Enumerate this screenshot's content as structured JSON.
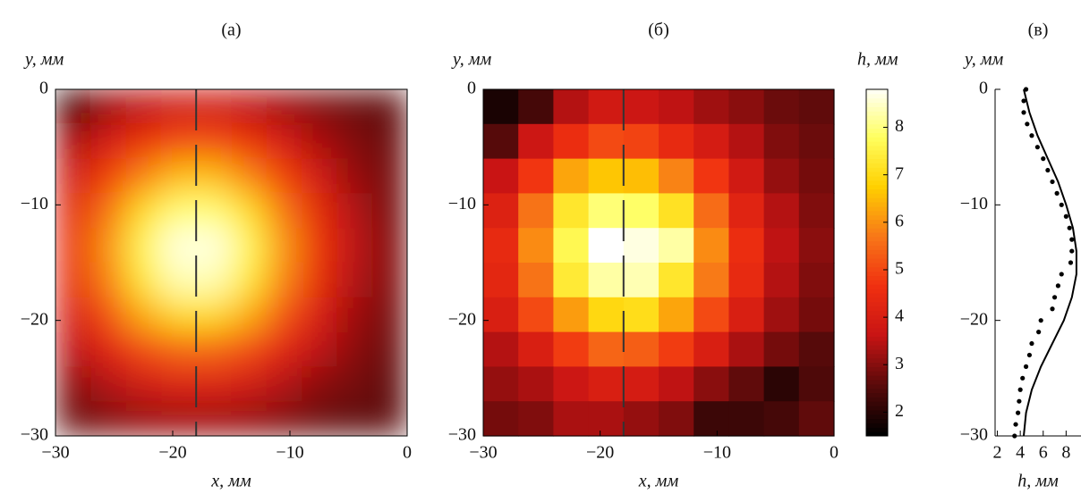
{
  "chart_data": [
    {
      "type": "heatmap",
      "title": "(a)",
      "xlabel": "x, мм",
      "ylabel": "y, мм",
      "smooth": true,
      "xlim": [
        -30,
        0
      ],
      "ylim": [
        -30,
        0
      ],
      "xticks": [
        {
          "value": -30,
          "label": "−30"
        },
        {
          "value": -20,
          "label": "−20"
        },
        {
          "value": -10,
          "label": "−10"
        },
        0
      ],
      "yticks": [
        0,
        {
          "value": -10,
          "label": "−10"
        },
        {
          "value": -20,
          "label": "−20"
        },
        {
          "value": -30,
          "label": "−30"
        }
      ],
      "clim": [
        1.5,
        8.8
      ],
      "colormap": [
        "#000000",
        "#5a0a0a",
        "#c81414",
        "#f03010",
        "#f87818",
        "#ffd000",
        "#ffff60",
        "#ffffff"
      ],
      "section_x": -18,
      "section_color": "#333333",
      "z": [
        [
          2.0,
          3.2,
          3.5,
          3.8,
          3.8,
          3.5,
          3.2,
          2.9,
          2.7,
          2.6
        ],
        [
          3.3,
          3.9,
          4.5,
          5.0,
          5.0,
          4.5,
          3.9,
          3.3,
          2.9,
          2.7
        ],
        [
          3.8,
          4.8,
          5.8,
          6.5,
          6.5,
          5.8,
          4.8,
          3.8,
          3.1,
          2.8
        ],
        [
          4.3,
          5.6,
          7.0,
          7.9,
          7.9,
          7.0,
          5.6,
          4.3,
          3.4,
          2.8
        ],
        [
          4.5,
          6.0,
          7.6,
          8.6,
          8.6,
          7.6,
          6.0,
          4.5,
          3.5,
          2.9
        ],
        [
          4.4,
          5.8,
          7.3,
          8.3,
          8.3,
          7.3,
          5.8,
          4.4,
          3.4,
          2.9
        ],
        [
          4.0,
          5.1,
          6.3,
          7.0,
          7.0,
          6.3,
          5.1,
          4.0,
          3.2,
          2.8
        ],
        [
          3.5,
          4.2,
          5.0,
          5.4,
          5.4,
          5.0,
          4.2,
          3.5,
          3.0,
          2.7
        ],
        [
          3.0,
          3.4,
          3.8,
          4.1,
          4.1,
          3.8,
          3.4,
          3.0,
          2.8,
          2.6
        ],
        [
          2.7,
          2.9,
          3.1,
          3.2,
          3.2,
          3.1,
          2.9,
          2.7,
          2.6,
          2.6
        ]
      ]
    },
    {
      "type": "heatmap",
      "title": "(б)",
      "xlabel": "x, мм",
      "ylabel": "y, мм",
      "smooth": false,
      "xlim": [
        -30,
        0
      ],
      "ylim": [
        -30,
        0
      ],
      "xticks": [
        {
          "value": -30,
          "label": "−30"
        },
        {
          "value": -20,
          "label": "−20"
        },
        {
          "value": -10,
          "label": "−10"
        },
        0
      ],
      "yticks": [
        0,
        {
          "value": -10,
          "label": "−10"
        },
        {
          "value": -20,
          "label": "−20"
        },
        {
          "value": -30,
          "label": "−30"
        }
      ],
      "clim": [
        1.5,
        8.8
      ],
      "colormap": [
        "#000000",
        "#5a0a0a",
        "#c81414",
        "#f03010",
        "#f87818",
        "#ffd000",
        "#ffff60",
        "#ffffff"
      ],
      "section_x": -18,
      "section_color": "#333333",
      "colorbar": {
        "label": "h, мм",
        "ticks": [
          2,
          3,
          4,
          5,
          6,
          7,
          8
        ]
      },
      "z": [
        [
          1.8,
          2.3,
          3.4,
          3.8,
          3.7,
          3.5,
          3.2,
          3.0,
          2.7,
          2.6
        ],
        [
          2.5,
          3.7,
          4.5,
          5.0,
          4.9,
          4.4,
          3.9,
          3.4,
          2.9,
          2.7
        ],
        [
          3.6,
          4.7,
          6.2,
          6.6,
          6.5,
          5.8,
          4.7,
          3.8,
          3.1,
          2.8
        ],
        [
          4.1,
          5.6,
          7.2,
          7.9,
          7.8,
          7.1,
          5.5,
          4.2,
          3.4,
          2.9
        ],
        [
          4.4,
          5.9,
          7.6,
          8.8,
          8.6,
          8.2,
          5.9,
          4.5,
          3.5,
          3.0
        ],
        [
          4.3,
          5.6,
          7.3,
          8.2,
          8.3,
          7.2,
          5.7,
          4.4,
          3.4,
          2.9
        ],
        [
          4.0,
          5.0,
          6.1,
          6.9,
          7.0,
          6.2,
          5.0,
          4.0,
          3.2,
          2.8
        ],
        [
          3.4,
          4.0,
          4.8,
          5.4,
          5.3,
          4.8,
          4.0,
          3.3,
          2.8,
          2.5
        ],
        [
          3.1,
          3.3,
          3.7,
          4.0,
          3.9,
          3.5,
          3.0,
          2.6,
          2.0,
          2.4
        ],
        [
          2.8,
          2.9,
          3.3,
          3.3,
          3.1,
          2.9,
          2.2,
          2.2,
          2.3,
          2.6
        ]
      ]
    },
    {
      "type": "profile",
      "title": "(в)",
      "xlabel": "h, мм",
      "ylabel": "y, мм",
      "xlim": [
        1.8,
        9.3
      ],
      "ylim": [
        -30,
        0
      ],
      "xticks": [
        2,
        4,
        6,
        8
      ],
      "yticks": [
        0,
        {
          "value": -10,
          "label": "−10"
        },
        {
          "value": -20,
          "label": "−20"
        },
        {
          "value": -30,
          "label": "−30"
        }
      ],
      "series": [
        {
          "type": "scatter",
          "color": "#000000",
          "y": [
            0,
            -1,
            -2,
            -3,
            -4,
            -5,
            -6,
            -7,
            -8,
            -9,
            -10,
            -11,
            -12,
            -13,
            -14,
            -15,
            -16,
            -17,
            -18,
            -19,
            -20,
            -21,
            -22,
            -23,
            -24,
            -25,
            -26,
            -27,
            -28,
            -29,
            -30
          ],
          "h": [
            4.5,
            4.3,
            4.3,
            4.6,
            5.0,
            5.5,
            6.0,
            6.4,
            6.8,
            7.2,
            7.6,
            8.0,
            8.3,
            8.5,
            8.5,
            8.4,
            7.6,
            7.3,
            7.0,
            6.8,
            5.8,
            5.6,
            5.0,
            4.8,
            4.5,
            4.2,
            4.0,
            3.9,
            3.8,
            3.6,
            3.5
          ]
        },
        {
          "type": "line",
          "color": "#000000",
          "y": [
            0,
            -2,
            -4,
            -6,
            -8,
            -10,
            -12,
            -14,
            -16,
            -18,
            -20,
            -22,
            -24,
            -26,
            -28,
            -30
          ],
          "h": [
            4.3,
            4.8,
            5.5,
            6.4,
            7.3,
            8.0,
            8.6,
            8.9,
            8.9,
            8.5,
            7.8,
            6.8,
            5.8,
            5.0,
            4.5,
            4.3
          ]
        }
      ]
    }
  ]
}
